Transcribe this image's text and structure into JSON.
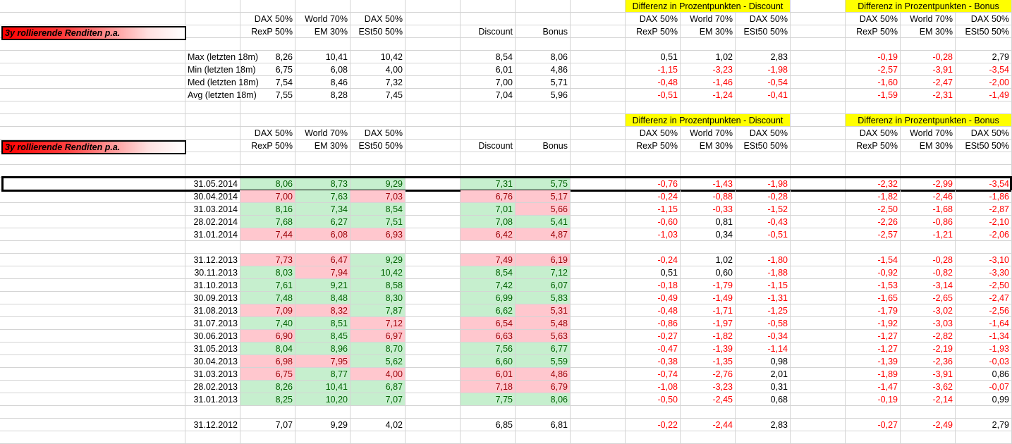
{
  "block_label": "3y rollierende Renditen p.a.",
  "diff_discount_title": "Differenz in Prozentpunkten -  Discount",
  "diff_bonus_title": "Differenz in Prozentpunkten -  Bonus",
  "col_headers_top": [
    "DAX 50%",
    "World 70%",
    "DAX 50%",
    "",
    "",
    "DAX 50%",
    "World 70%",
    "DAX 50%",
    "DAX 50%",
    "World 70%",
    "DAX 50%"
  ],
  "col_headers_bottom": [
    "RexP 50%",
    "EM 30%",
    "ESt50 50%",
    "Discount",
    "Bonus",
    "RexP 50%",
    "EM 30%",
    "ESt50 50%",
    "RexP 50%",
    "EM 30%",
    "ESt50 50%"
  ],
  "summary_rows": [
    {
      "label": "Max (letzten 18m)",
      "values": [
        "8,26",
        "10,41",
        "10,42",
        "8,54",
        "8,06",
        "0,51",
        "1,02",
        "2,83",
        "-0,19",
        "-0,28",
        "2,79"
      ]
    },
    {
      "label": "Min (letzten 18m)",
      "values": [
        "6,75",
        "6,08",
        "4,00",
        "6,01",
        "4,86",
        "-1,15",
        "-3,23",
        "-1,98",
        "-2,57",
        "-3,91",
        "-3,54"
      ]
    },
    {
      "label": "Med (letzten 18m)",
      "values": [
        "7,54",
        "8,46",
        "7,32",
        "7,00",
        "5,71",
        "-0,48",
        "-1,46",
        "-0,54",
        "-1,60",
        "-2,47",
        "-2,00"
      ]
    },
    {
      "label": "Avg (letzten 18m)",
      "values": [
        "7,55",
        "8,28",
        "7,45",
        "7,04",
        "5,96",
        "-0,51",
        "-1,24",
        "-0,41",
        "-1,59",
        "-2,31",
        "-1,49"
      ]
    }
  ],
  "data_rows": [
    {
      "date": "31.05.2014",
      "values": [
        "8,06",
        "8,73",
        "9,29",
        "7,31",
        "5,75",
        "-0,76",
        "-1,43",
        "-1,98",
        "-2,32",
        "-2,99",
        "-3,54"
      ],
      "fmt": "gggggg",
      "selected": true
    },
    {
      "date": "30.04.2014",
      "values": [
        "7,00",
        "7,63",
        "7,03",
        "6,76",
        "5,17",
        "-0,24",
        "-0,88",
        "-0,28",
        "-1,82",
        "-2,46",
        "-1,86"
      ],
      "fmt": "pgppp"
    },
    {
      "date": "31.03.2014",
      "values": [
        "8,16",
        "7,34",
        "8,54",
        "7,01",
        "5,66",
        "-1,15",
        "-0,33",
        "-1,52",
        "-2,50",
        "-1,68",
        "-2,87"
      ],
      "fmt": "ggggpg"
    },
    {
      "date": "28.02.2014",
      "values": [
        "7,68",
        "6,27",
        "7,51",
        "7,08",
        "5,41",
        "-0,60",
        "0,81",
        "-0,43",
        "-2,26",
        "-0,86",
        "-2,10"
      ],
      "fmt": "ggggg"
    },
    {
      "date": "31.01.2014",
      "values": [
        "7,44",
        "6,08",
        "6,93",
        "6,42",
        "4,87",
        "-1,03",
        "0,34",
        "-0,51",
        "-2,57",
        "-1,21",
        "-2,06"
      ],
      "fmt": "ppppp"
    },
    {
      "date": "",
      "values": [
        "",
        "",
        "",
        "",
        "",
        "",
        "",
        "",
        "",
        "",
        ""
      ],
      "fmt": "-----"
    },
    {
      "date": "31.12.2013",
      "values": [
        "7,73",
        "6,47",
        "9,29",
        "7,49",
        "6,19",
        "-0,24",
        "1,02",
        "-1,80",
        "-1,54",
        "-0,28",
        "-3,10"
      ],
      "fmt": "ppgpp"
    },
    {
      "date": "30.11.2013",
      "values": [
        "8,03",
        "7,94",
        "10,42",
        "8,54",
        "7,12",
        "0,51",
        "0,60",
        "-1,88",
        "-0,92",
        "-0,82",
        "-3,30"
      ],
      "fmt": "gpggg"
    },
    {
      "date": "31.10.2013",
      "values": [
        "7,61",
        "9,21",
        "8,58",
        "7,42",
        "6,07",
        "-0,18",
        "-1,79",
        "-1,15",
        "-1,53",
        "-3,14",
        "-2,50"
      ],
      "fmt": "ggggg"
    },
    {
      "date": "30.09.2013",
      "values": [
        "7,48",
        "8,48",
        "8,30",
        "6,99",
        "5,83",
        "-0,49",
        "-1,49",
        "-1,31",
        "-1,65",
        "-2,65",
        "-2,47"
      ],
      "fmt": "ggggg"
    },
    {
      "date": "31.08.2013",
      "values": [
        "7,09",
        "8,32",
        "7,87",
        "6,62",
        "5,31",
        "-0,48",
        "-1,71",
        "-1,25",
        "-1,79",
        "-3,02",
        "-2,56"
      ],
      "fmt": "ppggp"
    },
    {
      "date": "31.07.2013",
      "values": [
        "7,40",
        "8,51",
        "7,12",
        "6,54",
        "5,48",
        "-0,86",
        "-1,97",
        "-0,58",
        "-1,92",
        "-3,03",
        "-1,64"
      ],
      "fmt": "ggppp"
    },
    {
      "date": "30.06.2013",
      "values": [
        "6,90",
        "8,45",
        "6,97",
        "6,63",
        "5,63",
        "-0,27",
        "-1,82",
        "-0,34",
        "-1,27",
        "-2,82",
        "-1,34"
      ],
      "fmt": "pgppp"
    },
    {
      "date": "31.05.2013",
      "values": [
        "8,04",
        "8,96",
        "8,70",
        "7,56",
        "6,77",
        "-0,47",
        "-1,39",
        "-1,14",
        "-1,27",
        "-2,19",
        "-1,93"
      ],
      "fmt": "ggggg"
    },
    {
      "date": "30.04.2013",
      "values": [
        "6,98",
        "7,95",
        "5,62",
        "6,60",
        "5,59",
        "-0,38",
        "-1,35",
        "0,98",
        "-1,39",
        "-2,36",
        "-0,03"
      ],
      "fmt": "ppggg"
    },
    {
      "date": "31.03.2013",
      "values": [
        "6,75",
        "8,77",
        "4,00",
        "6,01",
        "4,86",
        "-0,74",
        "-2,76",
        "2,01",
        "-1,89",
        "-3,91",
        "0,86"
      ],
      "fmt": "pgppp"
    },
    {
      "date": "28.02.2013",
      "values": [
        "8,26",
        "10,41",
        "6,87",
        "7,18",
        "6,79",
        "-1,08",
        "-3,23",
        "0,31",
        "-1,47",
        "-3,62",
        "-0,07"
      ],
      "fmt": "gggpp"
    },
    {
      "date": "31.01.2013",
      "values": [
        "8,25",
        "10,20",
        "7,07",
        "7,75",
        "8,06",
        "-0,50",
        "-2,45",
        "0,68",
        "-0,19",
        "-2,14",
        "0,99"
      ],
      "fmt": "ggggg"
    },
    {
      "date": "",
      "values": [
        "",
        "",
        "",
        "",
        "",
        "",
        "",
        "",
        "",
        "",
        ""
      ],
      "fmt": "-----"
    },
    {
      "date": "31.12.2012",
      "values": [
        "7,07",
        "9,29",
        "4,02",
        "6,85",
        "6,81",
        "-0,22",
        "-2,44",
        "2,83",
        "-0,27",
        "-2,49",
        "2,79"
      ],
      "fmt": "-----"
    }
  ],
  "colors": {
    "green_fill": "#c6efce",
    "red_fill": "#ffc7ce",
    "yellow": "#ffff00",
    "negative_text": "#ff0000"
  }
}
